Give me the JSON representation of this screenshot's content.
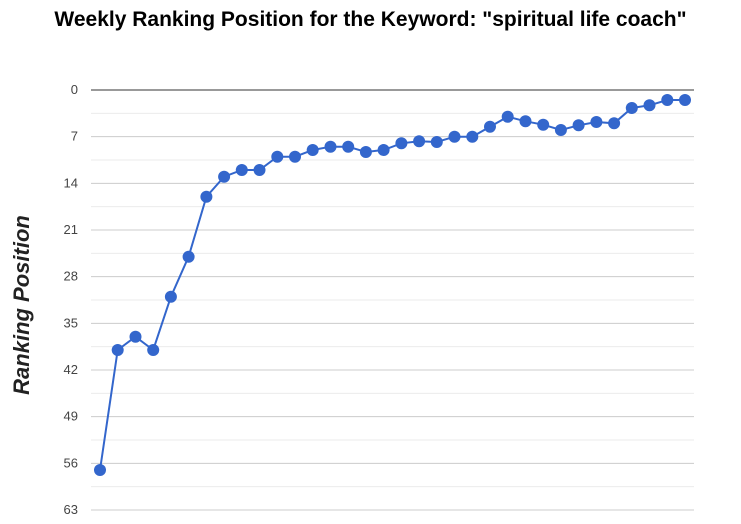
{
  "chart_data": {
    "type": "line",
    "title": "Weekly Ranking Position for the Keyword: \"spiritual life coach\"",
    "xlabel": "",
    "ylabel": "Ranking Position",
    "y_reversed": true,
    "ylim": [
      0,
      63
    ],
    "y_ticks": [
      "0",
      "7",
      "14",
      "21",
      "28",
      "35",
      "42",
      "49",
      "56",
      "63"
    ],
    "grid": true,
    "legend": "none",
    "series_color": "#3366cc",
    "series": [
      {
        "values": [
          57,
          39,
          37,
          39,
          31,
          25,
          16,
          13,
          12,
          12,
          10,
          10,
          9,
          8.5,
          8.5,
          9.3,
          9,
          8,
          7.7,
          7.8,
          7,
          7,
          5.5,
          4,
          4.7,
          5.2,
          6,
          5.3,
          4.8,
          5,
          2.7,
          2.3,
          1.5,
          1.5
        ]
      }
    ]
  }
}
